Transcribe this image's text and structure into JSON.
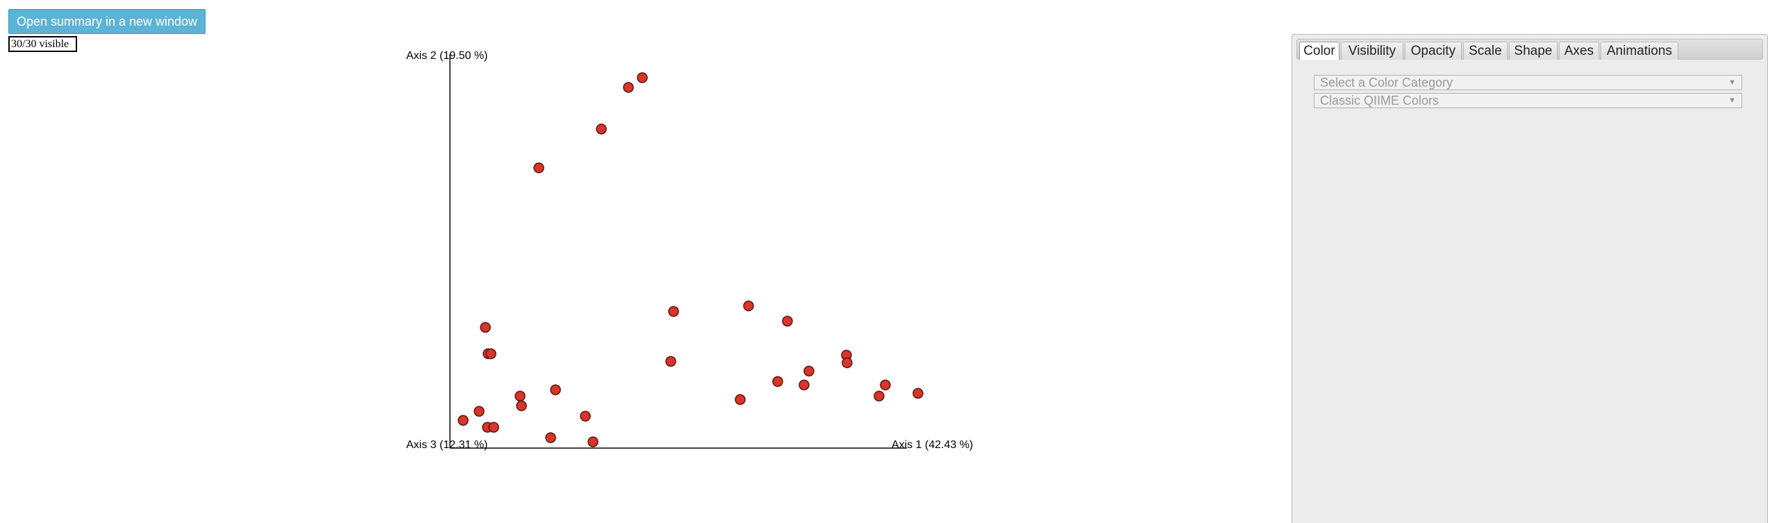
{
  "header": {
    "summary_button_label": "Open summary in a new window",
    "visible_count": "30/30 visible"
  },
  "plot": {
    "axis2_label": "Axis 2 (19.50 %)",
    "axis3_label": "Axis 3 (12.31 %)",
    "axis1_label": "Axis 1 (42.43 %)",
    "point_color": "#d9352a",
    "point_outline": "#5a1410"
  },
  "panel": {
    "tabs": [
      {
        "label": "Color",
        "active": true
      },
      {
        "label": "Visibility",
        "active": false
      },
      {
        "label": "Opacity",
        "active": false
      },
      {
        "label": "Scale",
        "active": false
      },
      {
        "label": "Shape",
        "active": false
      },
      {
        "label": "Axes",
        "active": false
      },
      {
        "label": "Animations",
        "active": false
      }
    ],
    "color_category_placeholder": "Select a Color Category",
    "colormap_value": "Classic QIIME Colors"
  }
}
